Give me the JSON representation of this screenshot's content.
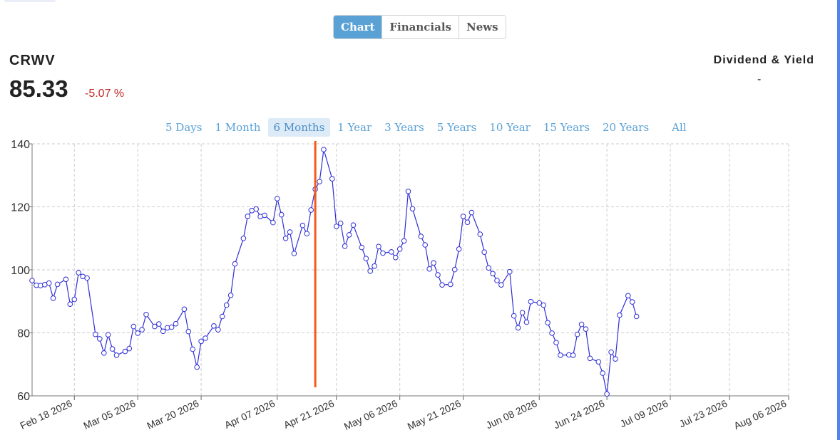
{
  "tabs": {
    "items": [
      {
        "label": "Chart",
        "active": true
      },
      {
        "label": "Financials",
        "active": false
      },
      {
        "label": "News",
        "active": false
      }
    ]
  },
  "quote": {
    "ticker": "CRWV",
    "price": "85.33",
    "change": "-5.07 %",
    "change_color": "#c62828"
  },
  "dividend": {
    "title": "Dividend & Yield",
    "value": "-"
  },
  "ranges": {
    "items": [
      {
        "label": "5 Days",
        "active": false
      },
      {
        "label": "1 Month",
        "active": false
      },
      {
        "label": "6 Months",
        "active": true
      },
      {
        "label": "1 Year",
        "active": false
      },
      {
        "label": "3 Years",
        "active": false
      },
      {
        "label": "5 Years",
        "active": false
      },
      {
        "label": "10 Year",
        "active": false
      },
      {
        "label": "15 Years",
        "active": false
      },
      {
        "label": "20 Years",
        "active": false
      },
      {
        "label": "All",
        "active": false
      }
    ]
  },
  "colors": {
    "accent": "#5aa1d6",
    "line": "#2f2fd6",
    "marker_line": "#f25a1e",
    "edge": "#4f86e6"
  },
  "chart_data": {
    "type": "line",
    "title": "",
    "xlabel": "",
    "ylabel": "",
    "ylim": [
      60,
      140
    ],
    "yticks": [
      60,
      80,
      100,
      120,
      140
    ],
    "xlim": [
      "2026-02-08",
      "2026-08-06"
    ],
    "grid": true,
    "xticks": [
      {
        "date": "2026-02-18",
        "label": "Feb 18 2026"
      },
      {
        "date": "2026-03-05",
        "label": "Mar 05 2026"
      },
      {
        "date": "2026-03-20",
        "label": "Mar 20 2026"
      },
      {
        "date": "2026-04-07",
        "label": "Apr 07 2026"
      },
      {
        "date": "2026-04-21",
        "label": "Apr 21 2026"
      },
      {
        "date": "2026-05-06",
        "label": "May 06 2026"
      },
      {
        "date": "2026-05-21",
        "label": "May 21 2026"
      },
      {
        "date": "2026-06-08",
        "label": "Jun 08 2026"
      },
      {
        "date": "2026-06-24",
        "label": "Jun 24 2026"
      },
      {
        "date": "2026-07-09",
        "label": "Jul 09 2026"
      },
      {
        "date": "2026-07-23",
        "label": "Jul 23 2026"
      },
      {
        "date": "2026-08-06",
        "label": "Aug 06 2026"
      }
    ],
    "marker_date": "2026-04-16",
    "series": [
      {
        "points": [
          [
            "2026-02-08",
            96.6
          ],
          [
            "2026-02-09",
            95.1
          ],
          [
            "2026-02-10",
            95.0
          ],
          [
            "2026-02-11",
            95.3
          ],
          [
            "2026-02-12",
            95.8
          ],
          [
            "2026-02-13",
            91.0
          ],
          [
            "2026-02-14",
            95.4
          ],
          [
            "2026-02-16",
            97.0
          ],
          [
            "2026-02-17",
            89.1
          ],
          [
            "2026-02-18",
            90.6
          ],
          [
            "2026-02-19",
            99.1
          ],
          [
            "2026-02-20",
            97.9
          ],
          [
            "2026-02-21",
            97.4
          ],
          [
            "2026-02-23",
            79.5
          ],
          [
            "2026-02-24",
            78.1
          ],
          [
            "2026-02-25",
            73.6
          ],
          [
            "2026-02-26",
            79.4
          ],
          [
            "2026-02-27",
            74.9
          ],
          [
            "2026-02-28",
            72.9
          ],
          [
            "2026-03-02",
            74.1
          ],
          [
            "2026-03-03",
            75.0
          ],
          [
            "2026-03-04",
            82.0
          ],
          [
            "2026-03-05",
            79.9
          ],
          [
            "2026-03-06",
            81.0
          ],
          [
            "2026-03-07",
            85.8
          ],
          [
            "2026-03-09",
            82.0
          ],
          [
            "2026-03-10",
            82.8
          ],
          [
            "2026-03-11",
            80.5
          ],
          [
            "2026-03-12",
            81.6
          ],
          [
            "2026-03-13",
            81.8
          ],
          [
            "2026-03-14",
            82.9
          ],
          [
            "2026-03-16",
            87.5
          ],
          [
            "2026-03-17",
            80.4
          ],
          [
            "2026-03-18",
            74.8
          ],
          [
            "2026-03-19",
            69.1
          ],
          [
            "2026-03-20",
            77.3
          ],
          [
            "2026-03-21",
            78.3
          ],
          [
            "2026-03-23",
            82.2
          ],
          [
            "2026-03-24",
            81.0
          ],
          [
            "2026-03-25",
            85.2
          ],
          [
            "2026-03-26",
            88.8
          ],
          [
            "2026-03-27",
            91.9
          ],
          [
            "2026-03-28",
            101.9
          ],
          [
            "2026-03-30",
            110.0
          ],
          [
            "2026-03-31",
            117.0
          ],
          [
            "2026-04-01",
            118.8
          ],
          [
            "2026-04-02",
            119.3
          ],
          [
            "2026-04-03",
            116.9
          ],
          [
            "2026-04-04",
            117.3
          ],
          [
            "2026-04-06",
            115.0
          ],
          [
            "2026-04-07",
            122.6
          ],
          [
            "2026-04-08",
            117.5
          ],
          [
            "2026-04-09",
            110.0
          ],
          [
            "2026-04-10",
            112.0
          ],
          [
            "2026-04-11",
            105.2
          ],
          [
            "2026-04-13",
            114.1
          ],
          [
            "2026-04-14",
            111.5
          ],
          [
            "2026-04-15",
            119.0
          ],
          [
            "2026-04-16",
            125.6
          ],
          [
            "2026-04-17",
            128.0
          ],
          [
            "2026-04-18",
            138.2
          ],
          [
            "2026-04-20",
            128.9
          ],
          [
            "2026-04-21",
            113.8
          ],
          [
            "2026-04-22",
            114.8
          ],
          [
            "2026-04-23",
            107.5
          ],
          [
            "2026-04-24",
            111.1
          ],
          [
            "2026-04-25",
            114.2
          ],
          [
            "2026-04-27",
            107.1
          ],
          [
            "2026-04-28",
            103.6
          ],
          [
            "2026-04-29",
            99.6
          ],
          [
            "2026-04-30",
            101.2
          ],
          [
            "2026-05-01",
            107.4
          ],
          [
            "2026-05-02",
            105.3
          ],
          [
            "2026-05-04",
            105.7
          ],
          [
            "2026-05-05",
            103.9
          ],
          [
            "2026-05-06",
            106.6
          ],
          [
            "2026-05-07",
            109.2
          ],
          [
            "2026-05-08",
            124.9
          ],
          [
            "2026-05-09",
            119.4
          ],
          [
            "2026-05-11",
            110.6
          ],
          [
            "2026-05-12",
            107.9
          ],
          [
            "2026-05-13",
            100.3
          ],
          [
            "2026-05-14",
            102.2
          ],
          [
            "2026-05-15",
            98.4
          ],
          [
            "2026-05-16",
            95.2
          ],
          [
            "2026-05-18",
            95.4
          ],
          [
            "2026-05-19",
            100.1
          ],
          [
            "2026-05-20",
            106.6
          ],
          [
            "2026-05-21",
            117.0
          ],
          [
            "2026-05-22",
            115.1
          ],
          [
            "2026-05-23",
            118.2
          ],
          [
            "2026-05-25",
            111.3
          ],
          [
            "2026-05-26",
            105.6
          ],
          [
            "2026-05-27",
            100.6
          ],
          [
            "2026-05-28",
            98.8
          ],
          [
            "2026-05-29",
            96.6
          ],
          [
            "2026-05-30",
            95.2
          ],
          [
            "2026-06-01",
            99.4
          ],
          [
            "2026-06-02",
            85.4
          ],
          [
            "2026-06-03",
            81.6
          ],
          [
            "2026-06-04",
            86.4
          ],
          [
            "2026-06-05",
            83.4
          ],
          [
            "2026-06-06",
            89.9
          ],
          [
            "2026-06-08",
            89.5
          ],
          [
            "2026-06-09",
            88.8
          ],
          [
            "2026-06-10",
            83.2
          ],
          [
            "2026-06-11",
            79.9
          ],
          [
            "2026-06-12",
            76.9
          ],
          [
            "2026-06-13",
            72.9
          ],
          [
            "2026-06-15",
            73.0
          ],
          [
            "2026-06-16",
            72.9
          ],
          [
            "2026-06-17",
            79.5
          ],
          [
            "2026-06-18",
            82.7
          ],
          [
            "2026-06-19",
            81.2
          ],
          [
            "2026-06-20",
            71.9
          ],
          [
            "2026-06-22",
            70.8
          ],
          [
            "2026-06-23",
            67.2
          ],
          [
            "2026-06-24",
            60.6
          ],
          [
            "2026-06-25",
            73.9
          ],
          [
            "2026-06-26",
            71.7
          ],
          [
            "2026-06-27",
            85.6
          ],
          [
            "2026-06-29",
            91.8
          ],
          [
            "2026-06-30",
            89.8
          ],
          [
            "2026-07-01",
            85.2
          ]
        ]
      }
    ]
  }
}
